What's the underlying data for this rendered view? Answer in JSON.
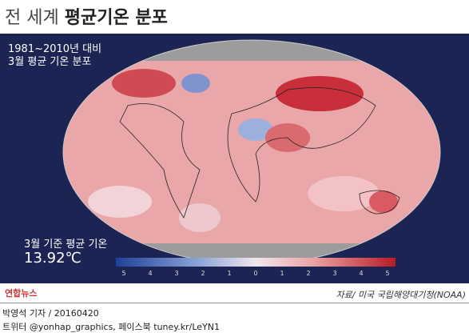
{
  "header": {
    "title_light": "전 세계",
    "title_bold": "평균기온 분포"
  },
  "map": {
    "subtitle_line1": "1981~2010년 대비",
    "subtitle_line2": "3월 평균 기온 분포",
    "baseline_label": "3월 기준 평균 기온",
    "baseline_value": "13.92℃",
    "legend": {
      "labels": [
        "5",
        "4",
        "3",
        "2",
        "1",
        "0",
        "1",
        "2",
        "3",
        "4",
        "5"
      ]
    }
  },
  "source": "자료/ 미국 국립해양대기청(NOAA)",
  "logo": "연합뉴스",
  "footer": {
    "byline": "박영석 기자 / 20160420",
    "social": "트위터 @yonhap_graphics, 페이스북 tuney.kr/LeYN1"
  }
}
